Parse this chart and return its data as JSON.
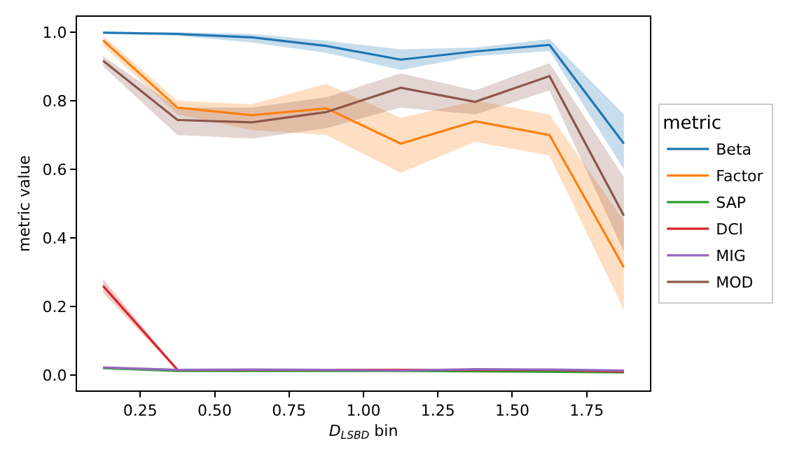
{
  "chart_data": {
    "type": "line",
    "xlabel": "D$_{LSBD}$ bin",
    "ylabel": "metric value",
    "legend_title": "metric",
    "legend": "right",
    "x": [
      0.125,
      0.375,
      0.625,
      0.875,
      1.125,
      1.375,
      1.625,
      1.875
    ],
    "xlim": [
      0.0375,
      1.9625
    ],
    "xticks": [
      {
        "value": 0.25,
        "label": "0.25"
      },
      {
        "value": 0.5,
        "label": "0.50"
      },
      {
        "value": 0.75,
        "label": "0.75"
      },
      {
        "value": 1.0,
        "label": "1.00"
      },
      {
        "value": 1.25,
        "label": "1.25"
      },
      {
        "value": 1.5,
        "label": "1.50"
      },
      {
        "value": 1.75,
        "label": "1.75"
      }
    ],
    "ylim": [
      -0.045,
      1.045
    ],
    "yticks": [
      {
        "value": 0,
        "label": "0.0"
      },
      {
        "value": 0.2,
        "label": "0.2"
      },
      {
        "value": 0.4,
        "label": "0.4"
      },
      {
        "value": 0.6,
        "label": "0.6"
      },
      {
        "value": 0.8,
        "label": "0.8"
      },
      {
        "value": 1.0,
        "label": "1.0"
      }
    ],
    "series": [
      {
        "name": "Beta",
        "color": "#1f77b4",
        "values": [
          0.999,
          0.995,
          0.985,
          0.96,
          0.92,
          0.944,
          0.963,
          0.675
        ],
        "lower": [
          0.995,
          0.99,
          0.97,
          0.94,
          0.89,
          0.93,
          0.945,
          0.6
        ],
        "upper": [
          1.0,
          1.0,
          0.995,
          0.975,
          0.95,
          0.955,
          0.98,
          0.76
        ]
      },
      {
        "name": "Factor",
        "color": "#ff7f0e",
        "values": [
          0.976,
          0.78,
          0.758,
          0.778,
          0.675,
          0.74,
          0.7,
          0.314
        ],
        "lower": [
          0.96,
          0.76,
          0.715,
          0.7,
          0.59,
          0.68,
          0.64,
          0.19
        ],
        "upper": [
          0.99,
          0.8,
          0.79,
          0.85,
          0.75,
          0.8,
          0.76,
          0.45
        ]
      },
      {
        "name": "SAP",
        "color": "#2ca02c",
        "values": [
          0.02,
          0.012,
          0.012,
          0.012,
          0.012,
          null,
          null,
          0.008
        ]
      },
      {
        "name": "DCI",
        "color": "#d62728",
        "values": [
          0.26,
          0.015,
          null,
          null,
          0.015,
          0.015,
          0.015,
          0.01
        ],
        "lower": [
          0.24,
          0.012,
          0.012,
          0.012,
          0.012,
          0.012,
          0.012,
          0.007
        ],
        "upper": [
          0.28,
          0.018,
          0.018,
          0.018,
          0.018,
          0.018,
          0.018,
          0.013
        ]
      },
      {
        "name": "MIG",
        "color": "#9467bd",
        "values": [
          0.022,
          0.015,
          0.016,
          0.015,
          0.013,
          0.017,
          0.016,
          0.013
        ]
      },
      {
        "name": "MOD",
        "color": "#8c564b",
        "values": [
          0.917,
          0.744,
          0.737,
          0.767,
          0.838,
          0.797,
          0.872,
          0.465
        ],
        "lower": [
          0.9,
          0.7,
          0.69,
          0.72,
          0.78,
          0.76,
          0.83,
          0.36
        ],
        "upper": [
          0.93,
          0.78,
          0.78,
          0.81,
          0.88,
          0.83,
          0.91,
          0.577
        ]
      }
    ]
  }
}
